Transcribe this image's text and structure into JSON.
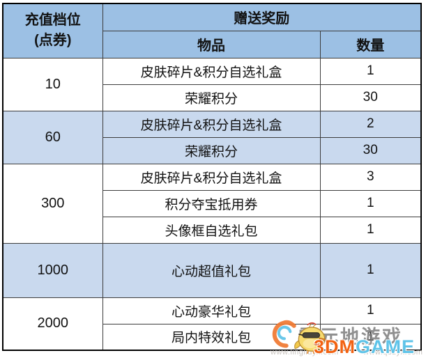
{
  "colors": {
    "header_bg": "#9CC0E4",
    "shade_bg": "#C9D9EE",
    "border": "#000000",
    "brand_orange": "#F26212",
    "brand_blue": "#5EC3E8"
  },
  "table": {
    "header": {
      "tier_line1": "充值档位",
      "tier_line2": "(点券)",
      "reward": "赠送奖励",
      "item": "物品",
      "qty": "数量"
    },
    "tiers": [
      {
        "tier": "10",
        "shade": false,
        "tall": false,
        "rewards": [
          {
            "item": "皮肤碎片&积分自选礼盒",
            "qty": "1"
          },
          {
            "item": "荣耀积分",
            "qty": "30"
          }
        ]
      },
      {
        "tier": "60",
        "shade": true,
        "tall": false,
        "rewards": [
          {
            "item": "皮肤碎片&积分自选礼盒",
            "qty": "2"
          },
          {
            "item": "荣耀积分",
            "qty": "30"
          }
        ]
      },
      {
        "tier": "300",
        "shade": false,
        "tall": false,
        "rewards": [
          {
            "item": "皮肤碎片&积分自选礼盒",
            "qty": "3"
          },
          {
            "item": "积分夺宝抵用券",
            "qty": "1"
          },
          {
            "item": "头像框自选礼包",
            "qty": "1"
          }
        ]
      },
      {
        "tier": "1000",
        "shade": true,
        "tall": true,
        "rewards": [
          {
            "item": "心动超值礼包",
            "qty": "1"
          }
        ]
      },
      {
        "tier": "2000",
        "shade": false,
        "tall": false,
        "rewards": [
          {
            "item": "心动豪华礼包",
            "qty": "1"
          },
          {
            "item": "局内特效礼包",
            "qty": "1"
          }
        ]
      }
    ]
  },
  "watermarks": {
    "site_text": "零元地游戏",
    "brand_orange": "3DM",
    "brand_blue": "GAME",
    "url_left": "www.lingliuyx.com",
    "url_right": "www.q8zyx.com"
  }
}
